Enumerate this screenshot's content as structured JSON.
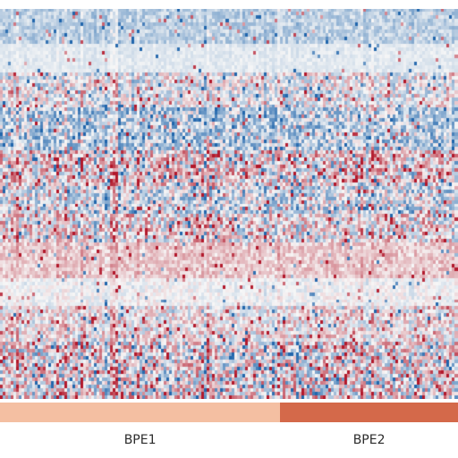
{
  "chart_data": {
    "type": "heatmap",
    "title": "",
    "xlabel": "",
    "ylabel": "",
    "colormap": {
      "low": "#2166ac",
      "mid": "#f7f7f7",
      "high": "#b2182b"
    },
    "value_range": [
      -1,
      1
    ],
    "n_columns": 170,
    "n_rows": 110,
    "column_groups": [
      {
        "label": "BPE1",
        "color": "#f4bfa2",
        "start_column": 0,
        "end_column": 103
      },
      {
        "label": "BPE2",
        "color": "#d4694a",
        "start_column": 104,
        "end_column": 169
      }
    ],
    "row_bands": [
      {
        "rows": 10,
        "base": -0.28,
        "variance": 0.25,
        "hot_column_prob": 0.05
      },
      {
        "rows": 8,
        "base": -0.1,
        "variance": 0.1,
        "hot_column_prob": 0.03
      },
      {
        "rows": 10,
        "base": -0.05,
        "variance": 0.55,
        "hot_column_prob": 0.12
      },
      {
        "rows": 12,
        "base": -0.3,
        "variance": 0.6,
        "hot_column_prob": 0.1
      },
      {
        "rows": 10,
        "base": 0.1,
        "variance": 0.75,
        "hot_column_prob": 0.18
      },
      {
        "rows": 8,
        "base": -0.15,
        "variance": 0.7,
        "hot_column_prob": 0.1
      },
      {
        "rows": 8,
        "base": 0.05,
        "variance": 0.7,
        "hot_column_prob": 0.12
      },
      {
        "rows": 10,
        "base": 0.22,
        "variance": 0.25,
        "hot_column_prob": 0.04
      },
      {
        "rows": 8,
        "base": -0.02,
        "variance": 0.2,
        "hot_column_prob": 0.04
      },
      {
        "rows": 10,
        "base": 0.05,
        "variance": 0.5,
        "hot_column_prob": 0.1
      },
      {
        "rows": 16,
        "base": 0.0,
        "variance": 0.85,
        "hot_column_prob": 0.15
      }
    ]
  }
}
